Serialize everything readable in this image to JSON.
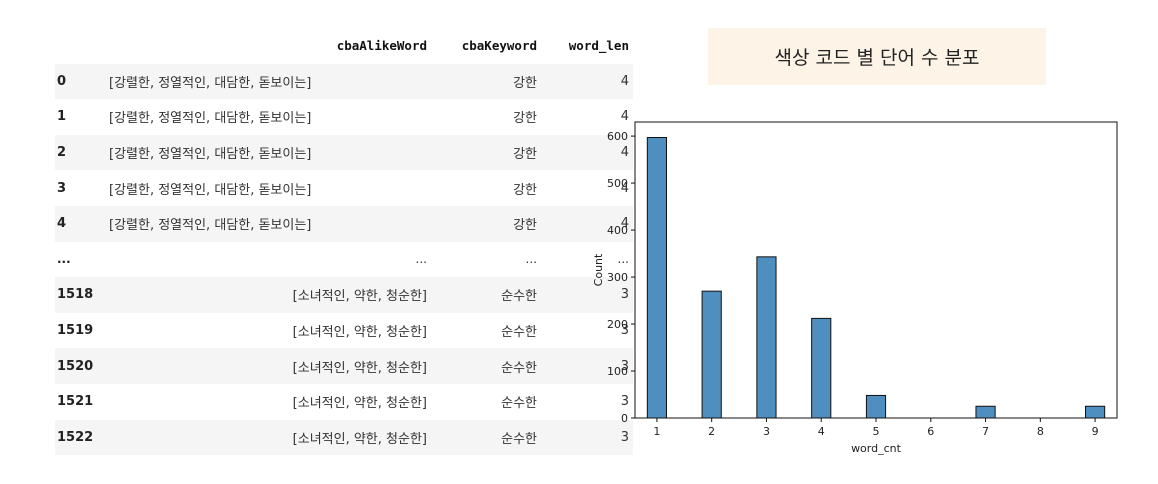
{
  "table": {
    "columns": [
      "cbaAlikeWord",
      "cbaKeyword",
      "word_len"
    ],
    "rows": [
      {
        "index": "0",
        "alike": "[강렬한, 정열적인, 대담한, 돋보이는]",
        "keyword": "강한",
        "len": "4"
      },
      {
        "index": "1",
        "alike": "[강렬한, 정열적인, 대담한, 돋보이는]",
        "keyword": "강한",
        "len": "4"
      },
      {
        "index": "2",
        "alike": "[강렬한, 정열적인, 대담한, 돋보이는]",
        "keyword": "강한",
        "len": "4"
      },
      {
        "index": "3",
        "alike": "[강렬한, 정열적인, 대담한, 돋보이는]",
        "keyword": "강한",
        "len": "4"
      },
      {
        "index": "4",
        "alike": "[강렬한, 정열적인, 대담한, 돋보이는]",
        "keyword": "강한",
        "len": "4"
      },
      {
        "index": "...",
        "alike": "...",
        "keyword": "...",
        "len": "..."
      },
      {
        "index": "1518",
        "alike": "[소녀적인, 약한, 청순한]",
        "keyword": "순수한",
        "len": "3"
      },
      {
        "index": "1519",
        "alike": "[소녀적인, 약한, 청순한]",
        "keyword": "순수한",
        "len": "3"
      },
      {
        "index": "1520",
        "alike": "[소녀적인, 약한, 청순한]",
        "keyword": "순수한",
        "len": "3"
      },
      {
        "index": "1521",
        "alike": "[소녀적인, 약한, 청순한]",
        "keyword": "순수한",
        "len": "3"
      },
      {
        "index": "1522",
        "alike": "[소녀적인, 약한, 청순한]",
        "keyword": "순수한",
        "len": "3"
      }
    ]
  },
  "chart_title": "색상 코드 별 단어 수 분포",
  "chart_data": {
    "type": "bar",
    "title": "색상 코드 별 단어 수 분포",
    "xlabel": "word_cnt",
    "ylabel": "Count",
    "categories": [
      1,
      2,
      3,
      4,
      5,
      7,
      9
    ],
    "values": [
      597,
      270,
      343,
      212,
      48,
      25,
      25
    ],
    "xlim": [
      0.6,
      9.4
    ],
    "ylim": [
      0,
      630
    ],
    "xticks": [
      1,
      2,
      3,
      4,
      5,
      6,
      7,
      8,
      9
    ],
    "yticks": [
      0,
      100,
      200,
      300,
      400,
      500,
      600
    ],
    "bar_width": 0.35,
    "bar_color": "#4f8fc0",
    "edge_color": "#111111",
    "grid": false
  }
}
